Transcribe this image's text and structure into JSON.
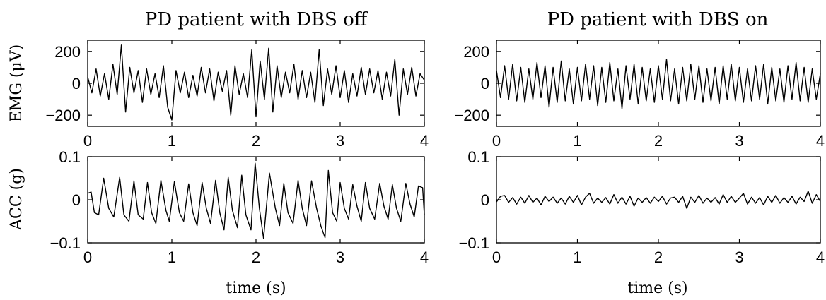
{
  "chart_data": [
    {
      "type": "line",
      "title": "PD patient with DBS off",
      "ylabel": "EMG (μV)",
      "xlabel": "",
      "xlim": [
        0,
        4
      ],
      "ylim": [
        -270,
        270
      ],
      "xticks": [
        "0",
        "1",
        "2",
        "3",
        "4"
      ],
      "yticks": [
        "−200",
        "0",
        "200"
      ],
      "ytick_values": [
        -200,
        0,
        200
      ],
      "grid": false,
      "series": [
        {
          "x": [
            0.0,
            0.05,
            0.1,
            0.15,
            0.2,
            0.25,
            0.3,
            0.35,
            0.4,
            0.45,
            0.5,
            0.55,
            0.6,
            0.65,
            0.7,
            0.75,
            0.8,
            0.85,
            0.9,
            0.95,
            1.0,
            1.05,
            1.1,
            1.15,
            1.2,
            1.25,
            1.3,
            1.35,
            1.4,
            1.45,
            1.5,
            1.55,
            1.6,
            1.65,
            1.7,
            1.75,
            1.8,
            1.85,
            1.9,
            1.95,
            2.0,
            2.05,
            2.1,
            2.15,
            2.2,
            2.25,
            2.3,
            2.35,
            2.4,
            2.45,
            2.5,
            2.55,
            2.6,
            2.65,
            2.7,
            2.75,
            2.8,
            2.85,
            2.9,
            2.95,
            3.0,
            3.05,
            3.1,
            3.15,
            3.2,
            3.25,
            3.3,
            3.35,
            3.4,
            3.45,
            3.5,
            3.55,
            3.6,
            3.65,
            3.7,
            3.75,
            3.8,
            3.85,
            3.9,
            3.95,
            4.0
          ],
          "y": [
            40,
            -60,
            90,
            -80,
            60,
            -100,
            120,
            -70,
            240,
            -180,
            100,
            -60,
            80,
            -120,
            90,
            -70,
            60,
            -90,
            110,
            -150,
            -230,
            80,
            -60,
            70,
            -90,
            50,
            -80,
            100,
            -60,
            90,
            -110,
            70,
            -50,
            80,
            -200,
            110,
            -70,
            60,
            -90,
            210,
            -210,
            140,
            -100,
            220,
            -180,
            110,
            -90,
            70,
            -60,
            120,
            -100,
            80,
            -90,
            70,
            -120,
            210,
            -140,
            90,
            -70,
            110,
            -90,
            80,
            -120,
            60,
            -80,
            100,
            -70,
            90,
            -60,
            80,
            -100,
            70,
            -80,
            150,
            -200,
            90,
            -70,
            100,
            -80,
            60,
            20
          ]
        }
      ]
    },
    {
      "type": "line",
      "title": "PD patient with DBS on",
      "ylabel": "",
      "xlabel": "",
      "xlim": [
        0,
        4
      ],
      "ylim": [
        -270,
        270
      ],
      "xticks": [
        "0",
        "1",
        "2",
        "3",
        "4"
      ],
      "yticks": [
        "−200",
        "0",
        "200"
      ],
      "ytick_values": [
        -200,
        0,
        200
      ],
      "grid": false,
      "series": [
        {
          "x": [
            0.0,
            0.05,
            0.1,
            0.15,
            0.2,
            0.25,
            0.3,
            0.35,
            0.4,
            0.45,
            0.5,
            0.55,
            0.6,
            0.65,
            0.7,
            0.75,
            0.8,
            0.85,
            0.9,
            0.95,
            1.0,
            1.05,
            1.1,
            1.15,
            1.2,
            1.25,
            1.3,
            1.35,
            1.4,
            1.45,
            1.5,
            1.55,
            1.6,
            1.65,
            1.7,
            1.75,
            1.8,
            1.85,
            1.9,
            1.95,
            2.0,
            2.05,
            2.1,
            2.15,
            2.2,
            2.25,
            2.3,
            2.35,
            2.4,
            2.45,
            2.5,
            2.55,
            2.6,
            2.65,
            2.7,
            2.75,
            2.8,
            2.85,
            2.9,
            2.95,
            3.0,
            3.05,
            3.1,
            3.15,
            3.2,
            3.25,
            3.3,
            3.35,
            3.4,
            3.45,
            3.5,
            3.55,
            3.6,
            3.65,
            3.7,
            3.75,
            3.8,
            3.85,
            3.9,
            3.95,
            4.0
          ],
          "y": [
            80,
            -90,
            110,
            -100,
            120,
            -110,
            100,
            -120,
            90,
            -100,
            130,
            -90,
            110,
            -150,
            100,
            -120,
            140,
            -110,
            90,
            -130,
            100,
            -110,
            120,
            -100,
            110,
            -140,
            100,
            -120,
            130,
            -110,
            90,
            -160,
            110,
            -100,
            120,
            -130,
            100,
            -110,
            90,
            -120,
            110,
            -100,
            150,
            -110,
            90,
            -130,
            100,
            -110,
            120,
            -100,
            110,
            -120,
            90,
            -110,
            100,
            -130,
            110,
            -100,
            120,
            -110,
            100,
            -120,
            90,
            -110,
            110,
            -100,
            120,
            -130,
            100,
            -110,
            90,
            -120,
            110,
            -100,
            130,
            -110,
            100,
            -120,
            90,
            -100,
            60
          ]
        }
      ]
    },
    {
      "type": "line",
      "title": "",
      "ylabel": "ACC (g)",
      "xlabel": "time (s)",
      "xlim": [
        0,
        4
      ],
      "ylim": [
        -0.1,
        0.1
      ],
      "xticks": [
        "0",
        "1",
        "2",
        "3",
        "4"
      ],
      "yticks": [
        "−0.1",
        "0",
        "0.1"
      ],
      "ytick_values": [
        -0.1,
        0,
        0.1
      ],
      "grid": false,
      "series": [
        {
          "x": [
            0.0,
            0.04,
            0.08,
            0.13,
            0.19,
            0.25,
            0.31,
            0.38,
            0.43,
            0.49,
            0.55,
            0.6,
            0.66,
            0.71,
            0.76,
            0.81,
            0.87,
            0.93,
            0.97,
            1.03,
            1.09,
            1.14,
            1.2,
            1.25,
            1.3,
            1.36,
            1.41,
            1.46,
            1.52,
            1.57,
            1.62,
            1.67,
            1.72,
            1.78,
            1.83,
            1.88,
            1.94,
            1.99,
            2.04,
            2.09,
            2.16,
            2.23,
            2.28,
            2.33,
            2.38,
            2.44,
            2.5,
            2.55,
            2.6,
            2.66,
            2.72,
            2.77,
            2.82,
            2.86,
            2.91,
            2.96,
            3.0,
            3.05,
            3.1,
            3.15,
            3.2,
            3.25,
            3.3,
            3.35,
            3.41,
            3.47,
            3.52,
            3.57,
            3.62,
            3.67,
            3.72,
            3.78,
            3.83,
            3.88,
            3.93,
            3.98,
            4.0
          ],
          "y": [
            0.015,
            0.018,
            -0.03,
            -0.035,
            0.05,
            -0.02,
            -0.04,
            0.052,
            -0.035,
            -0.05,
            0.044,
            -0.035,
            -0.045,
            0.04,
            -0.03,
            -0.055,
            0.045,
            -0.025,
            -0.05,
            0.042,
            -0.03,
            -0.05,
            0.037,
            -0.03,
            -0.06,
            0.04,
            -0.02,
            -0.055,
            0.045,
            -0.03,
            -0.07,
            0.052,
            -0.025,
            -0.065,
            0.057,
            -0.035,
            -0.07,
            0.085,
            -0.02,
            -0.09,
            0.062,
            -0.02,
            -0.06,
            0.038,
            -0.03,
            -0.055,
            0.045,
            -0.02,
            -0.06,
            0.044,
            -0.02,
            -0.06,
            -0.088,
            0.068,
            -0.03,
            -0.05,
            0.04,
            -0.02,
            -0.045,
            0.035,
            -0.015,
            -0.05,
            0.04,
            -0.02,
            -0.045,
            0.038,
            -0.015,
            -0.045,
            0.035,
            -0.02,
            -0.05,
            0.038,
            -0.01,
            -0.04,
            0.032,
            0.028,
            -0.035
          ]
        }
      ]
    },
    {
      "type": "line",
      "title": "",
      "ylabel": "",
      "xlabel": "time (s)",
      "xlim": [
        0,
        4
      ],
      "ylim": [
        -0.1,
        0.1
      ],
      "xticks": [
        "0",
        "1",
        "2",
        "3",
        "4"
      ],
      "yticks": [
        "−0.1",
        "0",
        "0.1"
      ],
      "ytick_values": [
        -0.1,
        0,
        0.1
      ],
      "grid": false,
      "series": [
        {
          "x": [
            0.0,
            0.05,
            0.1,
            0.15,
            0.2,
            0.25,
            0.3,
            0.35,
            0.4,
            0.45,
            0.5,
            0.55,
            0.6,
            0.65,
            0.7,
            0.75,
            0.8,
            0.85,
            0.9,
            0.95,
            1.0,
            1.05,
            1.1,
            1.15,
            1.2,
            1.25,
            1.3,
            1.35,
            1.4,
            1.45,
            1.5,
            1.55,
            1.6,
            1.65,
            1.7,
            1.75,
            1.8,
            1.85,
            1.9,
            1.95,
            2.0,
            2.05,
            2.1,
            2.15,
            2.2,
            2.25,
            2.3,
            2.35,
            2.4,
            2.45,
            2.5,
            2.55,
            2.6,
            2.65,
            2.7,
            2.75,
            2.8,
            2.85,
            2.9,
            2.95,
            3.0,
            3.05,
            3.1,
            3.15,
            3.2,
            3.25,
            3.3,
            3.35,
            3.4,
            3.45,
            3.5,
            3.55,
            3.6,
            3.65,
            3.7,
            3.75,
            3.8,
            3.85,
            3.9,
            3.95,
            4.0
          ],
          "y": [
            -0.005,
            0.008,
            0.01,
            -0.006,
            0.005,
            -0.01,
            0.006,
            -0.008,
            0.01,
            -0.006,
            0.004,
            -0.012,
            0.008,
            -0.004,
            0.006,
            -0.008,
            0.004,
            -0.01,
            0.008,
            -0.006,
            0.01,
            -0.012,
            0.006,
            0.015,
            -0.008,
            0.004,
            -0.006,
            0.005,
            -0.01,
            0.012,
            -0.008,
            0.006,
            -0.01,
            0.008,
            -0.015,
            0.004,
            -0.006,
            0.005,
            -0.008,
            0.006,
            -0.004,
            0.008,
            -0.01,
            0.004,
            0.006,
            -0.006,
            0.008,
            -0.02,
            0.006,
            -0.006,
            0.01,
            -0.008,
            0.004,
            -0.006,
            0.005,
            -0.01,
            0.012,
            -0.006,
            0.008,
            -0.006,
            0.004,
            0.015,
            -0.01,
            0.006,
            -0.008,
            0.005,
            -0.012,
            0.008,
            -0.006,
            0.01,
            -0.008,
            0.005,
            -0.006,
            0.008,
            -0.01,
            0.006,
            -0.004,
            0.02,
            -0.008,
            0.012,
            -0.004
          ]
        }
      ]
    }
  ]
}
